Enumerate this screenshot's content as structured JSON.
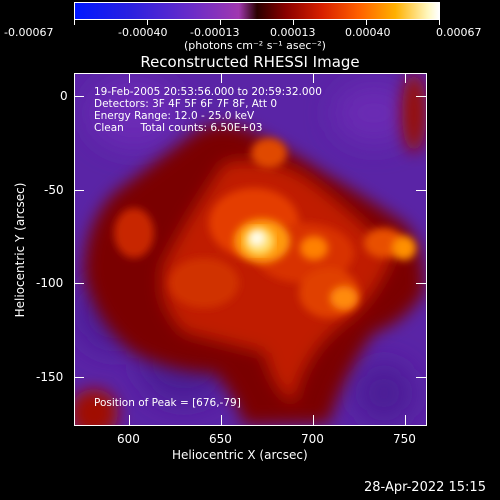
{
  "colorbar": {
    "tick_labels": [
      "-0.00067",
      "-0.00040",
      "-0.00013",
      "0.00013",
      "0.00040",
      "0.00067"
    ],
    "units": "(photons cm⁻² s⁻¹ asec⁻²)"
  },
  "title": "Reconstructed RHESSI Image",
  "info_lines": [
    "19-Feb-2005 20:53:56.000 to 20:59:32.000",
    "Detectors: 3F 4F 5F 6F 7F 8F, Att 0",
    "Energy Range: 12.0 - 25.0 keV",
    "Clean     Total counts: 6.50E+03"
  ],
  "peak_label": "Position of Peak = [676,-79]",
  "x_axis": {
    "label": "Heliocentric X (arcsec)",
    "range": [
      570,
      762
    ],
    "ticks": [
      600,
      650,
      700,
      750
    ]
  },
  "y_axis": {
    "label": "Heliocentric Y (arcsec)",
    "range": [
      -178,
      10
    ],
    "ticks": [
      0,
      -50,
      -100,
      -150
    ]
  },
  "timestamp": "28-Apr-2022 15:15",
  "colors": {
    "background": "#000000",
    "foreground": "#ffffff"
  }
}
